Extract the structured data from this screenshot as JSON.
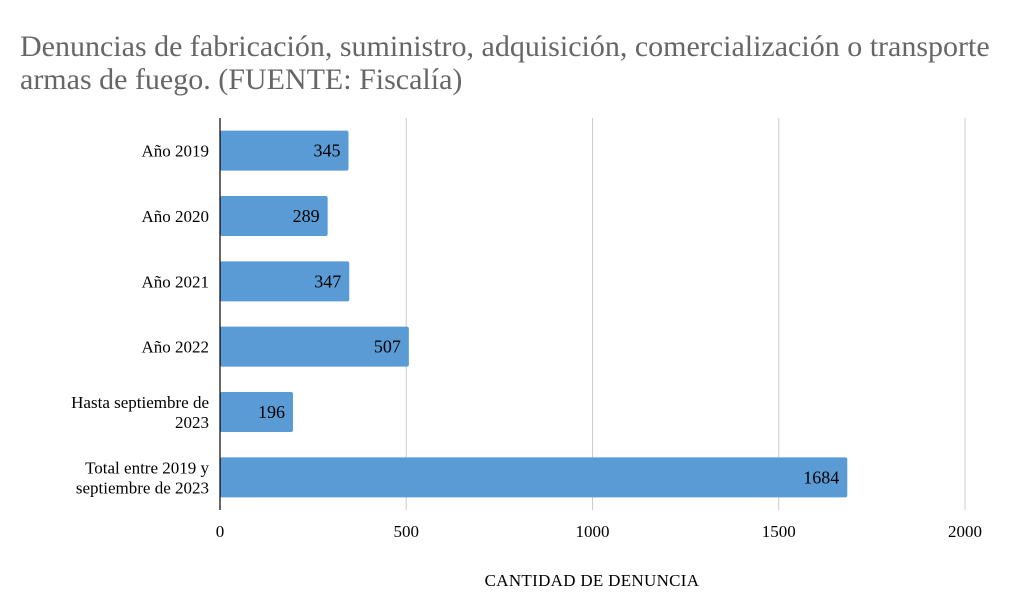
{
  "chart_data": {
    "type": "bar",
    "orientation": "horizontal",
    "title": "Denuncias de fabricación, suministro, adquisición, comercialización o transporte armas de fuego. (FUENTE: Fiscalía)",
    "categories": [
      [
        "Año 2019"
      ],
      [
        "Año 2020"
      ],
      [
        "Año 2021"
      ],
      [
        "Año 2022"
      ],
      [
        "Hasta septiembre de",
        "2023"
      ],
      [
        "Total entre 2019 y",
        "septiembre de 2023"
      ]
    ],
    "values": [
      345,
      289,
      347,
      507,
      196,
      1684
    ],
    "xlabel": "CANTIDAD DE DENUNCIA",
    "ylabel": "",
    "xlim": [
      0,
      2000
    ],
    "xticks": [
      "0",
      "500",
      "1000",
      "1500",
      "2000"
    ],
    "grid": "vertical",
    "legend": "none",
    "bar_color": "#5b9bd5",
    "grid_color": "#cccccc",
    "title_color": "#666666"
  }
}
